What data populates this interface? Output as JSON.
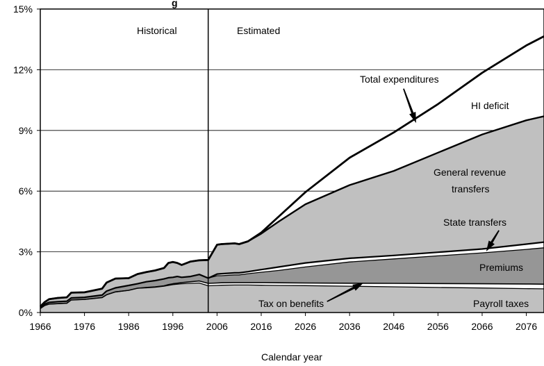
{
  "chart_data": {
    "type": "area",
    "title_fragment": "g",
    "xlabel": "Calendar year",
    "ylabel": "",
    "xlim": [
      1966,
      2080
    ],
    "ylim": [
      0,
      15
    ],
    "x_ticks": [
      1966,
      1976,
      1986,
      1996,
      2006,
      2016,
      2026,
      2036,
      2046,
      2056,
      2066,
      2076
    ],
    "y_ticks": [
      {
        "value": 0,
        "label": "0%"
      },
      {
        "value": 3,
        "label": "3%"
      },
      {
        "value": 6,
        "label": "6%"
      },
      {
        "value": 9,
        "label": "9%"
      },
      {
        "value": 12,
        "label": "12%"
      },
      {
        "value": 15,
        "label": "15%"
      }
    ],
    "grid": "horizontal",
    "divider_year": 2004,
    "period_labels": {
      "left": "Historical",
      "right": "Estimated"
    },
    "x": [
      1966,
      1967,
      1968,
      1970,
      1972,
      1973,
      1976,
      1980,
      1981,
      1983,
      1986,
      1988,
      1990,
      1992,
      1994,
      1995,
      1996,
      1997,
      1998,
      2000,
      2002,
      2004,
      2006,
      2007,
      2010,
      2011,
      2013,
      2016,
      2020,
      2026,
      2036,
      2046,
      2056,
      2066,
      2076,
      2080
    ],
    "series": [
      {
        "name": "Payroll taxes",
        "values": [
          0.2,
          0.35,
          0.42,
          0.44,
          0.46,
          0.62,
          0.65,
          0.74,
          0.88,
          1.02,
          1.1,
          1.2,
          1.22,
          1.25,
          1.3,
          1.34,
          1.38,
          1.4,
          1.42,
          1.44,
          1.46,
          1.32,
          1.34,
          1.35,
          1.36,
          1.36,
          1.36,
          1.35,
          1.34,
          1.33,
          1.3,
          1.27,
          1.24,
          1.21,
          1.18,
          1.17
        ]
      },
      {
        "name": "Tax on benefits",
        "values": [
          0.2,
          0.35,
          0.42,
          0.44,
          0.46,
          0.62,
          0.65,
          0.74,
          0.88,
          1.02,
          1.1,
          1.2,
          1.24,
          1.27,
          1.32,
          1.38,
          1.42,
          1.45,
          1.48,
          1.52,
          1.56,
          1.44,
          1.46,
          1.47,
          1.48,
          1.48,
          1.48,
          1.48,
          1.47,
          1.46,
          1.45,
          1.44,
          1.43,
          1.42,
          1.41,
          1.4
        ]
      },
      {
        "name": "Premiums",
        "values": [
          0.25,
          0.42,
          0.5,
          0.54,
          0.56,
          0.72,
          0.75,
          0.86,
          1.06,
          1.22,
          1.34,
          1.42,
          1.52,
          1.58,
          1.66,
          1.72,
          1.74,
          1.78,
          1.74,
          1.78,
          1.88,
          1.7,
          1.82,
          1.82,
          1.86,
          1.86,
          1.92,
          1.99,
          2.08,
          2.25,
          2.5,
          2.65,
          2.8,
          2.95,
          3.12,
          3.2
        ]
      },
      {
        "name": "State transfers",
        "values": [
          0.25,
          0.42,
          0.5,
          0.54,
          0.56,
          0.72,
          0.75,
          0.86,
          1.06,
          1.22,
          1.34,
          1.42,
          1.52,
          1.58,
          1.66,
          1.72,
          1.74,
          1.78,
          1.74,
          1.78,
          1.88,
          1.7,
          1.9,
          1.92,
          1.96,
          1.96,
          2.02,
          2.12,
          2.25,
          2.45,
          2.68,
          2.82,
          2.98,
          3.14,
          3.38,
          3.48
        ]
      },
      {
        "name": "General revenue transfers",
        "values": [
          0.3,
          0.52,
          0.66,
          0.72,
          0.75,
          0.98,
          1.0,
          1.18,
          1.48,
          1.68,
          1.7,
          1.9,
          2.0,
          2.08,
          2.2,
          2.45,
          2.5,
          2.45,
          2.35,
          2.52,
          2.58,
          2.6,
          3.35,
          3.38,
          3.42,
          3.38,
          3.52,
          3.9,
          4.5,
          5.35,
          6.3,
          7.0,
          7.9,
          8.8,
          9.5,
          9.7
        ]
      },
      {
        "name": "Total expenditures",
        "values": [
          0.3,
          0.52,
          0.66,
          0.72,
          0.75,
          0.98,
          1.0,
          1.18,
          1.48,
          1.68,
          1.7,
          1.9,
          2.0,
          2.08,
          2.2,
          2.45,
          2.5,
          2.45,
          2.35,
          2.52,
          2.58,
          2.6,
          3.35,
          3.38,
          3.42,
          3.38,
          3.52,
          3.95,
          4.75,
          5.95,
          7.65,
          8.9,
          10.3,
          11.85,
          13.2,
          13.65
        ]
      }
    ],
    "annotations": [
      {
        "text": "Total expenditures",
        "x": 2051,
        "y": 9.4
      },
      {
        "text": "HI deficit"
      },
      {
        "text": "General revenue"
      },
      {
        "text": "transfers"
      },
      {
        "text": "State transfers",
        "x": 2067,
        "y": 3.05
      },
      {
        "text": "Premiums"
      },
      {
        "text": "Tax on benefits",
        "x": 2039,
        "y": 1.45
      },
      {
        "text": "Payroll taxes"
      }
    ]
  }
}
